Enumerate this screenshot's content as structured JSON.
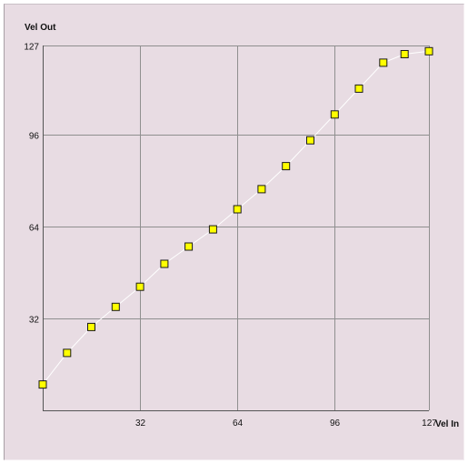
{
  "chart_data": {
    "type": "scatter",
    "xlabel": "Vel In",
    "ylabel": "Vel Out",
    "xlim": [
      0,
      127
    ],
    "ylim": [
      0,
      127
    ],
    "x_ticks": [
      "32",
      "64",
      "96",
      "127"
    ],
    "y_ticks": [
      "127",
      "96",
      "64",
      "32"
    ],
    "x_tick_values": [
      32,
      64,
      96,
      127
    ],
    "y_tick_values": [
      127,
      96,
      64,
      32
    ],
    "grid": true,
    "connecting_line": true,
    "series": [
      {
        "x": [
          0,
          8,
          16,
          24,
          32,
          40,
          48,
          56,
          64,
          72,
          80,
          88,
          96,
          104,
          112,
          119,
          127
        ],
        "y": [
          9,
          20,
          29,
          36,
          43,
          51,
          57,
          63,
          70,
          77,
          85,
          94,
          103,
          112,
          121,
          124,
          125
        ]
      }
    ],
    "colors": {
      "background": "#e8dce3",
      "grid": "#8f8f8f",
      "axis": "#555555",
      "line": "#ffffff",
      "marker_fill": "#ffff00",
      "marker_stroke": "#1a1a1a"
    }
  }
}
